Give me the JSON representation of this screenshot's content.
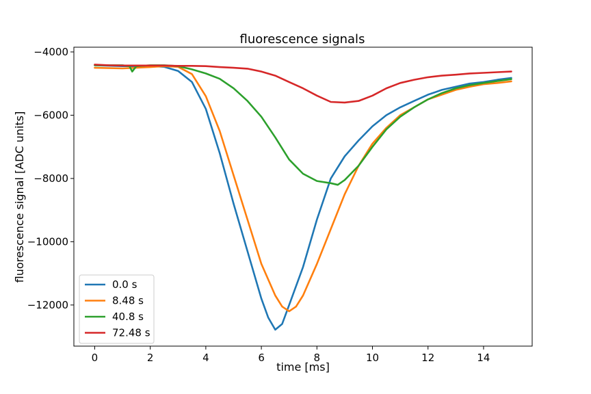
{
  "chart_data": {
    "type": "line",
    "title": "fluorescence signals",
    "xlabel": "time [ms]",
    "ylabel": "fluorescence signal [ADC units]",
    "xlim": [
      -0.75,
      15.75
    ],
    "ylim": [
      -13300,
      -3850
    ],
    "x_ticks": [
      0,
      2,
      4,
      6,
      8,
      10,
      12,
      14
    ],
    "x_tick_labels": [
      "0",
      "2",
      "4",
      "6",
      "8",
      "10",
      "12",
      "14"
    ],
    "y_ticks": [
      -4000,
      -6000,
      -8000,
      -10000,
      -12000
    ],
    "y_tick_labels": [
      "−4000",
      "−6000",
      "−8000",
      "−10000",
      "−12000"
    ],
    "grid": false,
    "legend_position": "lower-left",
    "series": [
      {
        "name": "0.0 s",
        "color": "#1f77b4",
        "x": [
          0,
          1,
          2,
          2.5,
          3,
          3.5,
          4,
          4.5,
          5,
          5.5,
          6,
          6.25,
          6.5,
          6.75,
          7,
          7.5,
          8,
          8.5,
          9,
          9.5,
          10,
          10.5,
          11,
          11.5,
          12,
          12.5,
          13,
          13.5,
          14,
          14.5,
          15
        ],
        "y": [
          -4420,
          -4450,
          -4450,
          -4470,
          -4600,
          -4950,
          -5800,
          -7200,
          -8800,
          -10300,
          -11800,
          -12400,
          -12780,
          -12600,
          -12000,
          -10800,
          -9300,
          -8000,
          -7300,
          -6800,
          -6350,
          -6000,
          -5750,
          -5550,
          -5350,
          -5200,
          -5100,
          -5000,
          -4950,
          -4880,
          -4820
        ]
      },
      {
        "name": "8.48 s",
        "color": "#ff7f0e",
        "x": [
          0,
          1,
          2,
          2.5,
          3,
          3.5,
          4,
          4.5,
          5,
          5.5,
          6,
          6.5,
          6.75,
          7,
          7.25,
          7.5,
          8,
          8.5,
          9,
          9.5,
          10,
          10.5,
          11,
          11.5,
          12,
          12.5,
          13,
          13.5,
          14,
          14.5,
          15
        ],
        "y": [
          -4500,
          -4520,
          -4480,
          -4450,
          -4470,
          -4700,
          -5400,
          -6500,
          -7900,
          -9300,
          -10700,
          -11700,
          -12050,
          -12200,
          -12050,
          -11700,
          -10700,
          -9600,
          -8500,
          -7600,
          -6900,
          -6400,
          -6000,
          -5750,
          -5500,
          -5350,
          -5200,
          -5100,
          -5020,
          -4980,
          -4930
        ]
      },
      {
        "name": "40.8 s",
        "color": "#2ca02c",
        "x": [
          0,
          1,
          1.25,
          1.35,
          1.5,
          2,
          2.5,
          3,
          3.5,
          4,
          4.5,
          5,
          5.5,
          6,
          6.5,
          7,
          7.5,
          8,
          8.5,
          8.75,
          9,
          9.5,
          10,
          10.5,
          11,
          11.5,
          12,
          12.5,
          13,
          13.5,
          14,
          14.5,
          15
        ],
        "y": [
          -4420,
          -4420,
          -4450,
          -4620,
          -4450,
          -4420,
          -4420,
          -4450,
          -4550,
          -4680,
          -4850,
          -5150,
          -5550,
          -6050,
          -6700,
          -7400,
          -7850,
          -8080,
          -8150,
          -8200,
          -8050,
          -7600,
          -7000,
          -6450,
          -6050,
          -5750,
          -5500,
          -5300,
          -5150,
          -5050,
          -4980,
          -4920,
          -4860
        ]
      },
      {
        "name": "72.48 s",
        "color": "#d62728",
        "x": [
          0,
          0.5,
          1,
          1.5,
          2,
          2.5,
          3,
          3.5,
          4,
          4.5,
          5,
          5.5,
          6,
          6.5,
          7,
          7.5,
          8,
          8.5,
          9,
          9.5,
          10,
          10.5,
          11,
          11.5,
          12,
          12.5,
          13,
          13.5,
          14,
          14.5,
          15
        ],
        "y": [
          -4400,
          -4420,
          -4430,
          -4430,
          -4430,
          -4430,
          -4440,
          -4440,
          -4450,
          -4480,
          -4500,
          -4530,
          -4620,
          -4750,
          -4950,
          -5150,
          -5380,
          -5580,
          -5600,
          -5550,
          -5380,
          -5150,
          -4980,
          -4880,
          -4800,
          -4750,
          -4720,
          -4680,
          -4660,
          -4640,
          -4620
        ]
      }
    ]
  }
}
